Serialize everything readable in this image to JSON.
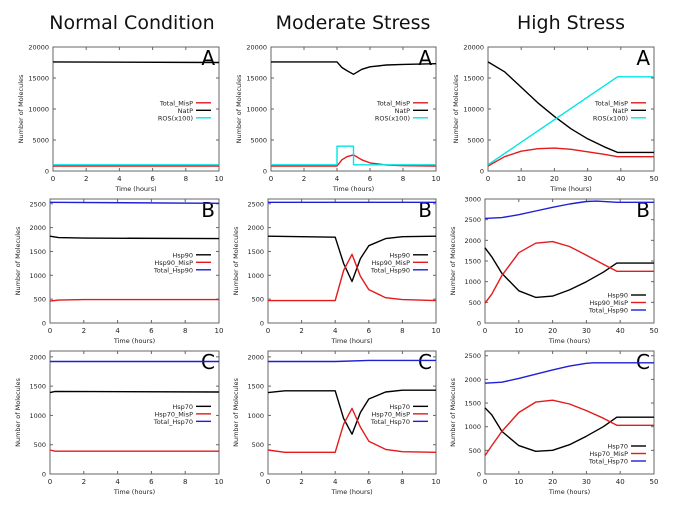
{
  "columns": [
    {
      "title": "Normal Condition"
    },
    {
      "title": "Moderate Stress"
    },
    {
      "title": "High Stress"
    }
  ],
  "colors": {
    "black": "#000000",
    "red": "#e41a1c",
    "cyan": "#00e5e5",
    "blue": "#1f1fd6",
    "axis": "#666666"
  },
  "chart_data": [
    {
      "type": "line",
      "panel": "A",
      "column": "Normal Condition",
      "xlabel": "Time (hours)",
      "ylabel": "Number of Molecules",
      "xlim": [
        0,
        10
      ],
      "ylim": [
        0,
        20000
      ],
      "xticks": [
        0,
        2,
        4,
        6,
        8,
        10
      ],
      "yticks": [
        0,
        5000,
        10000,
        15000,
        20000
      ],
      "legend": "center-right",
      "series": [
        {
          "name": "Total_MisP",
          "color": "red",
          "x": [
            0,
            10
          ],
          "y": [
            800,
            800
          ]
        },
        {
          "name": "NatP",
          "color": "black",
          "x": [
            0,
            10
          ],
          "y": [
            17600,
            17500
          ]
        },
        {
          "name": "ROS(x100)",
          "color": "cyan",
          "x": [
            0,
            10
          ],
          "y": [
            1000,
            1000
          ]
        }
      ]
    },
    {
      "type": "line",
      "panel": "A",
      "column": "Moderate Stress",
      "xlabel": "Time (hours)",
      "ylabel": "Number of Molecules",
      "xlim": [
        0,
        10
      ],
      "ylim": [
        0,
        20000
      ],
      "xticks": [
        0,
        2,
        4,
        6,
        8,
        10
      ],
      "yticks": [
        0,
        5000,
        10000,
        15000,
        20000
      ],
      "legend": "center-right",
      "series": [
        {
          "name": "Total_MisP",
          "color": "red",
          "x": [
            0,
            4,
            4.3,
            4.6,
            5,
            5.5,
            6,
            7,
            8,
            10
          ],
          "y": [
            800,
            800,
            1800,
            2300,
            2600,
            1800,
            1300,
            950,
            850,
            800
          ]
        },
        {
          "name": "NatP",
          "color": "black",
          "x": [
            0,
            4,
            4.3,
            4.6,
            5,
            5.5,
            6,
            7,
            8,
            10
          ],
          "y": [
            17600,
            17600,
            16700,
            16200,
            15600,
            16400,
            16800,
            17100,
            17200,
            17300
          ]
        },
        {
          "name": "ROS(x100)",
          "color": "cyan",
          "x": [
            0,
            4,
            4,
            5,
            5,
            10
          ],
          "y": [
            1000,
            1000,
            4000,
            4000,
            1000,
            1000
          ]
        }
      ]
    },
    {
      "type": "line",
      "panel": "A",
      "column": "High Stress",
      "xlabel": "Time (hours)",
      "ylabel": "Number of Molecules",
      "xlim": [
        0,
        50
      ],
      "ylim": [
        0,
        20000
      ],
      "xticks": [
        0,
        10,
        20,
        30,
        40,
        50
      ],
      "yticks": [
        0,
        5000,
        10000,
        15000,
        20000
      ],
      "legend": "center-right",
      "series": [
        {
          "name": "Total_MisP",
          "color": "red",
          "x": [
            0,
            5,
            10,
            15,
            20,
            25,
            30,
            35,
            39,
            50
          ],
          "y": [
            800,
            2300,
            3200,
            3600,
            3700,
            3500,
            3100,
            2700,
            2300,
            2300
          ]
        },
        {
          "name": "NatP",
          "color": "black",
          "x": [
            0,
            5,
            10,
            15,
            20,
            25,
            30,
            35,
            39,
            50
          ],
          "y": [
            17600,
            16000,
            13500,
            11000,
            8800,
            6800,
            5200,
            3900,
            3000,
            3000
          ]
        },
        {
          "name": "ROS(x100)",
          "color": "cyan",
          "x": [
            0,
            39,
            50
          ],
          "y": [
            1000,
            15200,
            15200
          ]
        }
      ]
    },
    {
      "type": "line",
      "panel": "B",
      "column": "Normal Condition",
      "xlabel": "Time (hours)",
      "ylabel": "Number of Molecules",
      "xlim": [
        0,
        10
      ],
      "ylim": [
        0,
        2600
      ],
      "xticks": [
        0,
        2,
        4,
        6,
        8,
        10
      ],
      "yticks": [
        0,
        500,
        1000,
        1500,
        2000,
        2500
      ],
      "legend": "center-right",
      "series": [
        {
          "name": "Hsp90",
          "color": "black",
          "x": [
            0,
            0.5,
            2,
            10
          ],
          "y": [
            1820,
            1790,
            1780,
            1770
          ]
        },
        {
          "name": "Hsp90_MisP",
          "color": "red",
          "x": [
            0,
            0.5,
            2,
            10
          ],
          "y": [
            460,
            480,
            490,
            490
          ]
        },
        {
          "name": "Total_Hsp90",
          "color": "blue",
          "x": [
            0,
            10
          ],
          "y": [
            2530,
            2510
          ]
        }
      ]
    },
    {
      "type": "line",
      "panel": "B",
      "column": "Moderate Stress",
      "xlabel": "Time (hours)",
      "ylabel": "Number of Molecules",
      "xlim": [
        0,
        10
      ],
      "ylim": [
        0,
        2600
      ],
      "xticks": [
        0,
        2,
        4,
        6,
        8,
        10
      ],
      "yticks": [
        0,
        500,
        1000,
        1500,
        2000,
        2500
      ],
      "legend": "center-right",
      "series": [
        {
          "name": "Hsp90",
          "color": "black",
          "x": [
            0,
            4,
            4.5,
            5,
            5.5,
            6,
            7,
            8,
            10
          ],
          "y": [
            1820,
            1800,
            1250,
            870,
            1350,
            1620,
            1770,
            1810,
            1820
          ]
        },
        {
          "name": "Hsp90_MisP",
          "color": "red",
          "x": [
            0,
            4,
            4.5,
            5,
            5.5,
            6,
            7,
            8,
            10
          ],
          "y": [
            470,
            470,
            1100,
            1440,
            980,
            700,
            530,
            490,
            470
          ]
        },
        {
          "name": "Total_Hsp90",
          "color": "blue",
          "x": [
            0,
            10
          ],
          "y": [
            2530,
            2530
          ]
        }
      ]
    },
    {
      "type": "line",
      "panel": "B",
      "column": "High Stress",
      "xlabel": "Time (hours)",
      "ylabel": "Number of Molecules",
      "xlim": [
        0,
        50
      ],
      "ylim": [
        0,
        3000
      ],
      "xticks": [
        0,
        10,
        20,
        30,
        40,
        50
      ],
      "yticks": [
        0,
        500,
        1000,
        1500,
        2000,
        2500,
        3000
      ],
      "legend": "bottom-right",
      "series": [
        {
          "name": "Hsp90",
          "color": "black",
          "x": [
            0,
            2,
            5,
            10,
            15,
            20,
            25,
            30,
            35,
            39,
            50
          ],
          "y": [
            1820,
            1600,
            1200,
            780,
            620,
            650,
            800,
            1000,
            1230,
            1450,
            1450
          ]
        },
        {
          "name": "Hsp90_MisP",
          "color": "red",
          "x": [
            0,
            2,
            5,
            10,
            15,
            20,
            25,
            30,
            35,
            39,
            50
          ],
          "y": [
            480,
            700,
            1150,
            1700,
            1930,
            1970,
            1850,
            1640,
            1420,
            1250,
            1250
          ]
        },
        {
          "name": "Total_Hsp90",
          "color": "blue",
          "x": [
            0,
            5,
            10,
            15,
            20,
            25,
            30,
            33,
            39,
            50
          ],
          "y": [
            2530,
            2550,
            2620,
            2710,
            2800,
            2880,
            2940,
            2950,
            2920,
            2920
          ]
        }
      ]
    },
    {
      "type": "line",
      "panel": "C",
      "column": "Normal Condition",
      "xlabel": "Time (hours)",
      "ylabel": "Number of Molecules",
      "xlim": [
        0,
        10
      ],
      "ylim": [
        0,
        2100
      ],
      "xticks": [
        0,
        2,
        4,
        6,
        8,
        10
      ],
      "yticks": [
        0,
        500,
        1000,
        1500,
        2000
      ],
      "legend": "center-right",
      "series": [
        {
          "name": "Hsp70",
          "color": "black",
          "x": [
            0,
            0.3,
            10
          ],
          "y": [
            1390,
            1410,
            1400
          ]
        },
        {
          "name": "Hsp70_MisP",
          "color": "red",
          "x": [
            0,
            0.3,
            10
          ],
          "y": [
            410,
            390,
            390
          ]
        },
        {
          "name": "Total_Hsp70",
          "color": "blue",
          "x": [
            0,
            10
          ],
          "y": [
            1920,
            1920
          ]
        }
      ]
    },
    {
      "type": "line",
      "panel": "C",
      "column": "Moderate Stress",
      "xlabel": "Time (hours)",
      "ylabel": "Number of Molecules",
      "xlim": [
        0,
        10
      ],
      "ylim": [
        0,
        2100
      ],
      "xticks": [
        0,
        2,
        4,
        6,
        8,
        10
      ],
      "yticks": [
        0,
        500,
        1000,
        1500,
        2000
      ],
      "legend": "center-right",
      "series": [
        {
          "name": "Hsp70",
          "color": "black",
          "x": [
            0,
            1,
            4,
            4.5,
            5,
            5.5,
            6,
            7,
            8,
            10
          ],
          "y": [
            1390,
            1420,
            1420,
            950,
            680,
            1050,
            1280,
            1400,
            1430,
            1430
          ]
        },
        {
          "name": "Hsp70_MisP",
          "color": "red",
          "x": [
            0,
            1,
            4,
            4.5,
            5,
            5.5,
            6,
            7,
            8,
            10
          ],
          "y": [
            410,
            370,
            370,
            850,
            1120,
            800,
            560,
            420,
            380,
            370
          ]
        },
        {
          "name": "Total_Hsp70",
          "color": "blue",
          "x": [
            0,
            4,
            6,
            10
          ],
          "y": [
            1920,
            1920,
            1940,
            1940
          ]
        }
      ]
    },
    {
      "type": "line",
      "panel": "C",
      "column": "High Stress",
      "xlabel": "Time (hours)",
      "ylabel": "Number of Molecules",
      "xlim": [
        0,
        50
      ],
      "ylim": [
        0,
        2600
      ],
      "xticks": [
        0,
        10,
        20,
        30,
        40,
        50
      ],
      "yticks": [
        0,
        500,
        1000,
        1500,
        2000,
        2500
      ],
      "legend": "bottom-right",
      "series": [
        {
          "name": "Hsp70",
          "color": "black",
          "x": [
            0,
            2,
            5,
            10,
            15,
            20,
            25,
            30,
            35,
            39,
            50
          ],
          "y": [
            1400,
            1250,
            900,
            600,
            480,
            500,
            620,
            800,
            1000,
            1200,
            1200
          ]
        },
        {
          "name": "Hsp70_MisP",
          "color": "red",
          "x": [
            0,
            2,
            5,
            10,
            15,
            20,
            25,
            30,
            35,
            39,
            50
          ],
          "y": [
            390,
            600,
            900,
            1300,
            1520,
            1560,
            1480,
            1340,
            1180,
            1030,
            1030
          ]
        },
        {
          "name": "Total_Hsp70",
          "color": "blue",
          "x": [
            0,
            5,
            10,
            15,
            20,
            25,
            30,
            32,
            50
          ],
          "y": [
            1920,
            1940,
            2020,
            2110,
            2200,
            2280,
            2340,
            2350,
            2350
          ]
        }
      ]
    }
  ]
}
